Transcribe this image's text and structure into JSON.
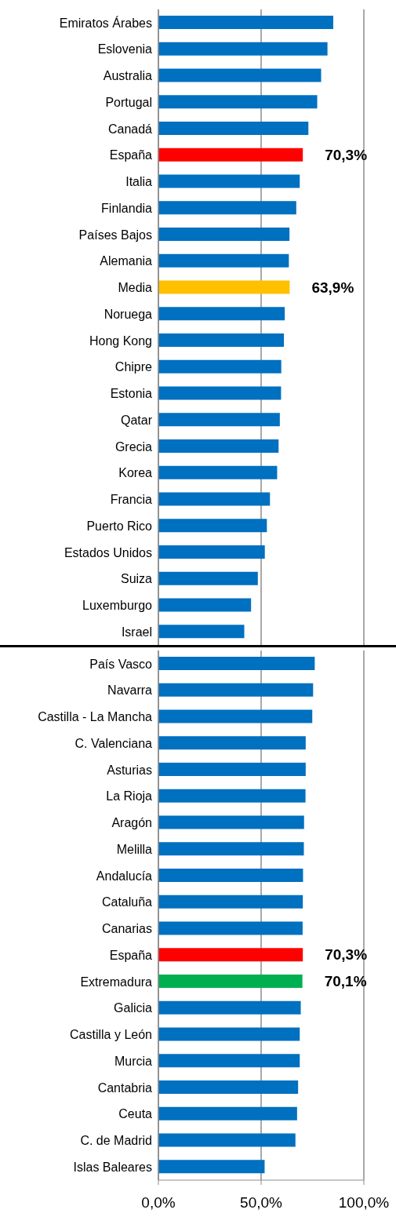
{
  "chart_data": [
    {
      "type": "bar",
      "orientation": "horizontal",
      "categories": [
        "Emiratos Árabes",
        "Eslovenia",
        "Australia",
        "Portugal",
        "Canadá",
        "España",
        "Italia",
        "Finlandia",
        "Países Bajos",
        "Alemania",
        "Media",
        "Noruega",
        "Hong Kong",
        "Chipre",
        "Estonia",
        "Qatar",
        "Grecia",
        "Korea",
        "Francia",
        "Puerto Rico",
        "Estados Unidos",
        "Suiza",
        "Luxemburgo",
        "Israel"
      ],
      "values": [
        85.1,
        82.3,
        79.2,
        77.3,
        73.0,
        70.3,
        68.8,
        67.1,
        63.8,
        63.5,
        63.9,
        61.5,
        61.1,
        59.8,
        59.7,
        59.1,
        58.5,
        57.8,
        54.3,
        52.8,
        51.8,
        48.4,
        45.1,
        41.8
      ],
      "colors": [
        "#0070c0",
        "#0070c0",
        "#0070c0",
        "#0070c0",
        "#0070c0",
        "#ff0000",
        "#0070c0",
        "#0070c0",
        "#0070c0",
        "#0070c0",
        "#ffc000",
        "#0070c0",
        "#0070c0",
        "#0070c0",
        "#0070c0",
        "#0070c0",
        "#0070c0",
        "#0070c0",
        "#0070c0",
        "#0070c0",
        "#0070c0",
        "#0070c0",
        "#0070c0",
        "#0070c0"
      ],
      "value_labels": [
        null,
        null,
        null,
        null,
        null,
        "70,3%",
        null,
        null,
        null,
        null,
        "63,9%",
        null,
        null,
        null,
        null,
        null,
        null,
        null,
        null,
        null,
        null,
        null,
        null,
        null
      ],
      "xlim": [
        0,
        100
      ],
      "xticks": [
        0,
        50,
        100
      ],
      "tick_labels": "y",
      "grid": "x",
      "legend": false
    },
    {
      "type": "bar",
      "orientation": "horizontal",
      "categories": [
        "País Vasco",
        "Navarra",
        "Castilla - La Mancha",
        "C. Valenciana",
        "Asturias",
        "La Rioja",
        "Aragón",
        "Melilla",
        "Andalucía",
        "Cataluña",
        "Canarias",
        "España",
        "Extremadura",
        "Galicia",
        "Castilla y León",
        "Murcia",
        "Cantabria",
        "Ceuta",
        "C. de Madrid",
        "Islas Baleares"
      ],
      "values": [
        76.1,
        75.3,
        74.9,
        71.7,
        71.7,
        71.6,
        70.9,
        70.8,
        70.4,
        70.3,
        70.2,
        70.3,
        70.1,
        69.3,
        68.8,
        68.8,
        68.0,
        67.5,
        66.7,
        51.7
      ],
      "colors": [
        "#0070c0",
        "#0070c0",
        "#0070c0",
        "#0070c0",
        "#0070c0",
        "#0070c0",
        "#0070c0",
        "#0070c0",
        "#0070c0",
        "#0070c0",
        "#0070c0",
        "#ff0000",
        "#00b050",
        "#0070c0",
        "#0070c0",
        "#0070c0",
        "#0070c0",
        "#0070c0",
        "#0070c0",
        "#0070c0"
      ],
      "value_labels": [
        null,
        null,
        null,
        null,
        null,
        null,
        null,
        null,
        null,
        null,
        null,
        "70,3%",
        "70,1%",
        null,
        null,
        null,
        null,
        null,
        null,
        null
      ],
      "xlim": [
        0,
        100
      ],
      "xticks": [
        {
          "value": 0,
          "label": "0,0%"
        },
        {
          "value": 50,
          "label": "50,0%"
        },
        {
          "value": 100,
          "label": "100,0%"
        }
      ],
      "grid": "x",
      "legend": false
    }
  ]
}
